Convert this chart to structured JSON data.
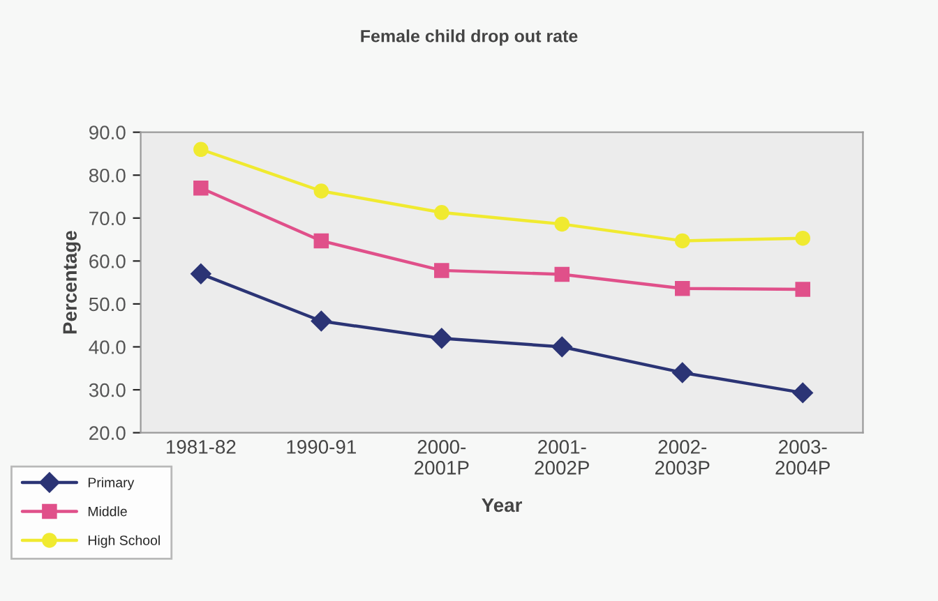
{
  "chart_data": {
    "type": "line",
    "title": "Female child drop out rate",
    "xlabel": "Year",
    "ylabel": "Percentage",
    "categories": [
      "1981-82",
      "1990-91",
      "2000-\n2001P",
      "2001-\n2002P",
      "2002-\n2003P",
      "2003-\n2004P"
    ],
    "series": [
      {
        "name": "Primary",
        "color": "#2b3475",
        "marker": "diamond",
        "values": [
          57,
          46,
          42,
          40,
          34,
          29.3
        ]
      },
      {
        "name": "Middle",
        "color": "#e0508a",
        "marker": "square",
        "values": [
          77,
          64.7,
          57.8,
          56.9,
          53.6,
          53.4
        ]
      },
      {
        "name": "High School",
        "color": "#f0ea30",
        "marker": "circle",
        "values": [
          86,
          76.3,
          71.3,
          68.6,
          64.7,
          65.3
        ]
      }
    ],
    "ylim": [
      20,
      90
    ],
    "yticks": [
      {
        "value": 20,
        "label": "20.0"
      },
      {
        "value": 30,
        "label": "30.0"
      },
      {
        "value": 40,
        "label": "40.0"
      },
      {
        "value": 50,
        "label": "50.0"
      },
      {
        "value": 60,
        "label": "60.0"
      },
      {
        "value": 70,
        "label": "70.0"
      },
      {
        "value": 80,
        "label": "80.0"
      },
      {
        "value": 90,
        "label": "90.0"
      }
    ],
    "grid": false,
    "legend": "bottom left"
  }
}
